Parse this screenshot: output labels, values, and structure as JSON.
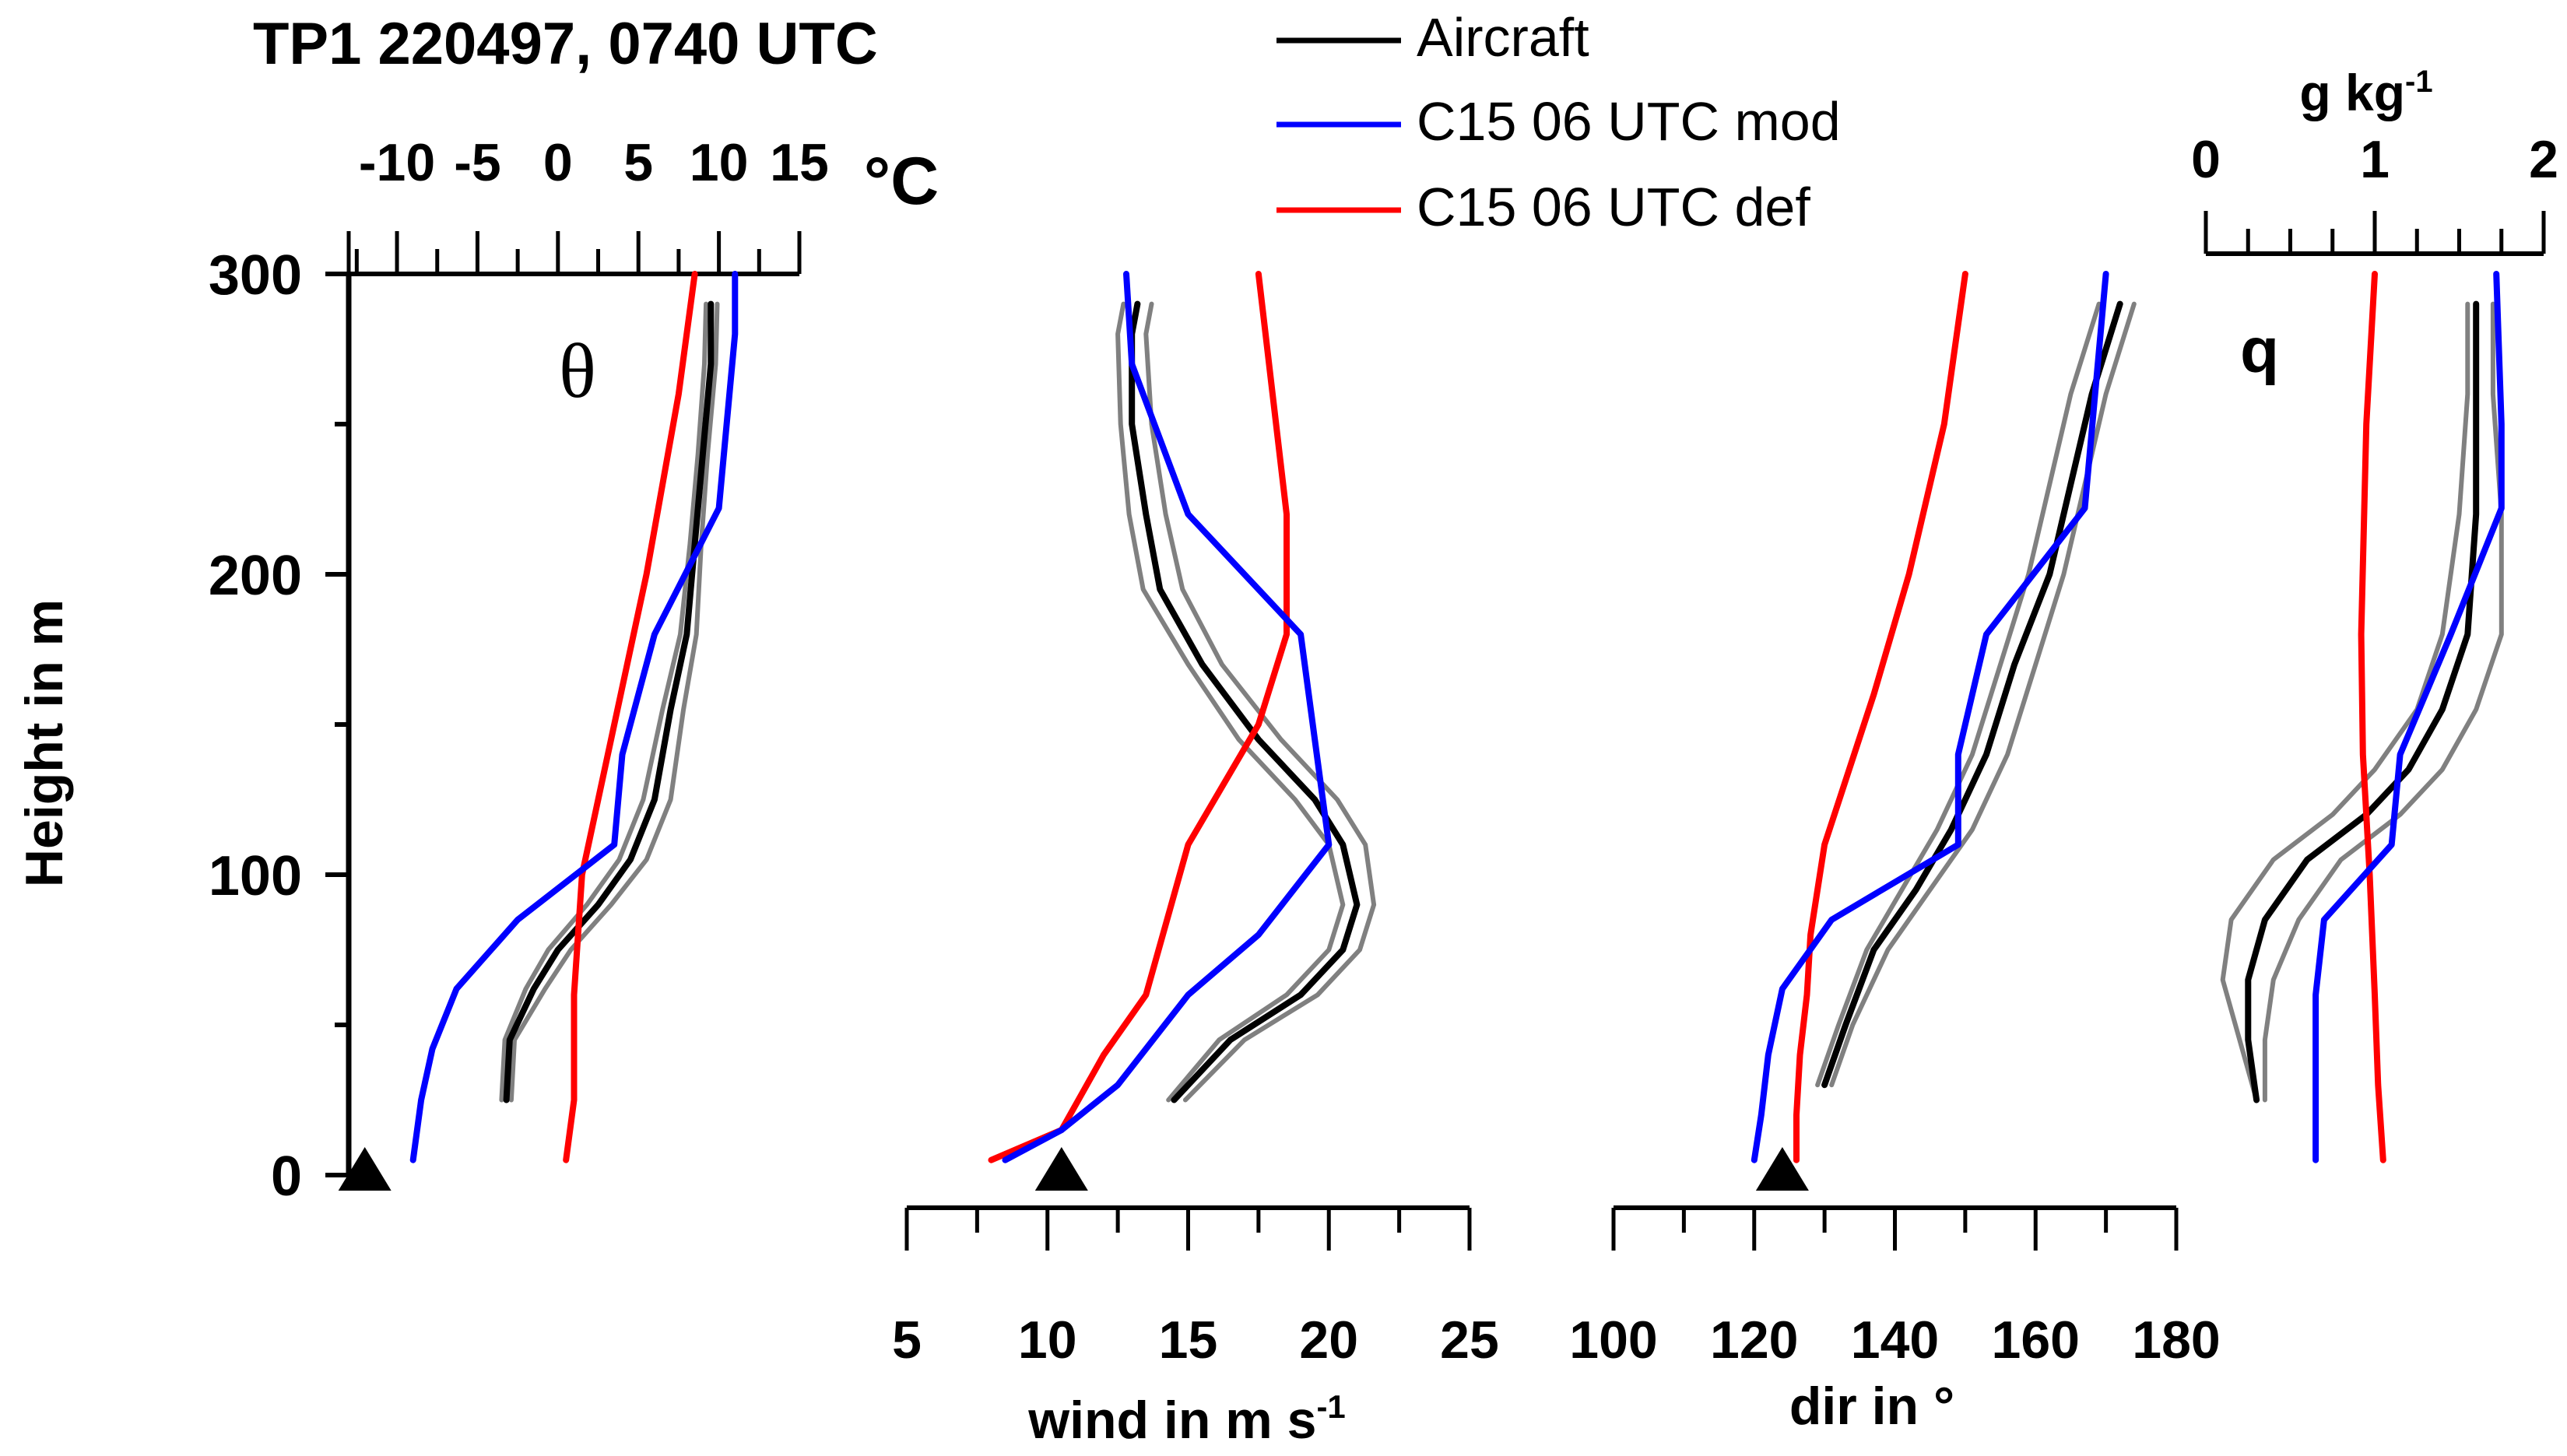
{
  "chart_data": {
    "type": "line",
    "title": "TP1 220497, 0740 UTC",
    "ylabel": "Height in m",
    "ylim": [
      0,
      300
    ],
    "yticks": [
      "0",
      "100",
      "200",
      "300"
    ],
    "legend": [
      "Aircraft",
      "C15 06 UTC mod",
      "C15 06 UTC def"
    ],
    "colors": {
      "aircraft": "#000000",
      "aircraft_band": "#808080",
      "mod": "#0000ff",
      "def": "#ff0000",
      "marker": "#000000"
    },
    "panels": [
      {
        "id": "theta",
        "label": "θ",
        "unit": "°C",
        "xlabel": "",
        "xlim": [
          -13,
          15
        ],
        "xticks": [
          "-10",
          "-5",
          "0",
          "5",
          "10",
          "15"
        ],
        "axis_position": "top",
        "surface_marker": -12,
        "series": {
          "aircraft": [
            [
              -3.2,
              25
            ],
            [
              -3,
              45
            ],
            [
              -1.5,
              62
            ],
            [
              0,
              75
            ],
            [
              2.5,
              90
            ],
            [
              4.5,
              105
            ],
            [
              6,
              125
            ],
            [
              7,
              155
            ],
            [
              8,
              180
            ],
            [
              8.5,
              210
            ],
            [
              9,
              240
            ],
            [
              9.5,
              270
            ],
            [
              9.5,
              290
            ]
          ],
          "aircraft_low": [
            [
              -3.5,
              25
            ],
            [
              -3.3,
              45
            ],
            [
              -2,
              62
            ],
            [
              -0.6,
              75
            ],
            [
              1.8,
              90
            ],
            [
              3.8,
              105
            ],
            [
              5.3,
              125
            ],
            [
              6.5,
              155
            ],
            [
              7.6,
              180
            ],
            [
              8.2,
              210
            ],
            [
              8.7,
              240
            ],
            [
              9.1,
              270
            ],
            [
              9.2,
              290
            ]
          ],
          "aircraft_high": [
            [
              -2.9,
              25
            ],
            [
              -2.7,
              45
            ],
            [
              -0.8,
              62
            ],
            [
              0.8,
              75
            ],
            [
              3.3,
              90
            ],
            [
              5.5,
              105
            ],
            [
              7,
              125
            ],
            [
              7.8,
              155
            ],
            [
              8.6,
              180
            ],
            [
              8.9,
              210
            ],
            [
              9.3,
              240
            ],
            [
              9.8,
              270
            ],
            [
              9.9,
              290
            ]
          ],
          "mod": [
            [
              -9,
              5
            ],
            [
              -8.5,
              25
            ],
            [
              -7.8,
              42
            ],
            [
              -6.3,
              62
            ],
            [
              -2.5,
              85
            ],
            [
              3.5,
              110
            ],
            [
              4,
              140
            ],
            [
              6,
              180
            ],
            [
              10,
              222
            ],
            [
              11,
              280
            ],
            [
              11,
              300
            ]
          ],
          "def": [
            [
              0.5,
              5
            ],
            [
              1,
              25
            ],
            [
              1,
              60
            ],
            [
              1.5,
              100
            ],
            [
              3.5,
              150
            ],
            [
              5.5,
              200
            ],
            [
              7.5,
              260
            ],
            [
              8.5,
              300
            ]
          ]
        }
      },
      {
        "id": "wind",
        "label": "",
        "unit": "",
        "xlabel": "wind in m s",
        "xlabel_sup": "-1",
        "xlim": [
          5,
          25
        ],
        "xticks": [
          "5",
          "10",
          "15",
          "20",
          "25"
        ],
        "axis_position": "bottom",
        "surface_marker": 10.5,
        "series": {
          "aircraft": [
            [
              14.5,
              25
            ],
            [
              16.5,
              45
            ],
            [
              19,
              60
            ],
            [
              20.5,
              75
            ],
            [
              21,
              90
            ],
            [
              20.5,
              110
            ],
            [
              19.5,
              125
            ],
            [
              17.5,
              145
            ],
            [
              15.5,
              170
            ],
            [
              14,
              195
            ],
            [
              13.5,
              220
            ],
            [
              13,
              250
            ],
            [
              13,
              280
            ],
            [
              13.2,
              290
            ]
          ],
          "aircraft_low": [
            [
              14.3,
              25
            ],
            [
              16.1,
              45
            ],
            [
              18.5,
              60
            ],
            [
              20,
              75
            ],
            [
              20.5,
              90
            ],
            [
              20,
              110
            ],
            [
              18.8,
              125
            ],
            [
              16.8,
              145
            ],
            [
              15,
              170
            ],
            [
              13.4,
              195
            ],
            [
              12.9,
              220
            ],
            [
              12.6,
              250
            ],
            [
              12.5,
              280
            ],
            [
              12.7,
              290
            ]
          ],
          "aircraft_high": [
            [
              14.9,
              25
            ],
            [
              17,
              45
            ],
            [
              19.6,
              60
            ],
            [
              21.1,
              75
            ],
            [
              21.6,
              90
            ],
            [
              21.3,
              110
            ],
            [
              20.3,
              125
            ],
            [
              18.3,
              145
            ],
            [
              16.2,
              170
            ],
            [
              14.8,
              195
            ],
            [
              14.2,
              220
            ],
            [
              13.7,
              250
            ],
            [
              13.5,
              280
            ],
            [
              13.7,
              290
            ]
          ],
          "mod": [
            [
              8.5,
              5
            ],
            [
              10.5,
              15
            ],
            [
              12.5,
              30
            ],
            [
              15,
              60
            ],
            [
              17.5,
              80
            ],
            [
              20,
              110
            ],
            [
              19,
              180
            ],
            [
              15,
              220
            ],
            [
              13,
              270
            ],
            [
              12.8,
              300
            ]
          ],
          "def": [
            [
              8,
              5
            ],
            [
              10.5,
              15
            ],
            [
              12,
              40
            ],
            [
              13.5,
              60
            ],
            [
              15,
              110
            ],
            [
              17.5,
              150
            ],
            [
              18.5,
              180
            ],
            [
              18.5,
              220
            ],
            [
              17.5,
              300
            ]
          ]
        }
      },
      {
        "id": "dir",
        "label": "",
        "unit": "",
        "xlabel": "dir in °",
        "xlim": [
          100,
          180
        ],
        "xticks": [
          "100",
          "120",
          "140",
          "160",
          "180"
        ],
        "axis_position": "bottom",
        "surface_marker": 124,
        "series": {
          "aircraft": [
            [
              130,
              30
            ],
            [
              133,
              50
            ],
            [
              137,
              75
            ],
            [
              143,
              95
            ],
            [
              148,
              115
            ],
            [
              153,
              140
            ],
            [
              157,
              170
            ],
            [
              162,
              200
            ],
            [
              165,
              230
            ],
            [
              168,
              260
            ],
            [
              172,
              290
            ]
          ],
          "aircraft_low": [
            [
              131,
              30
            ],
            [
              134,
              50
            ],
            [
              139,
              75
            ],
            [
              145,
              95
            ],
            [
              151,
              115
            ],
            [
              156,
              140
            ],
            [
              160,
              170
            ],
            [
              164,
              200
            ],
            [
              167,
              230
            ],
            [
              170,
              260
            ],
            [
              174,
              290
            ]
          ],
          "aircraft_high": [
            [
              129,
              30
            ],
            [
              132,
              50
            ],
            [
              136,
              75
            ],
            [
              141,
              95
            ],
            [
              146,
              115
            ],
            [
              151,
              140
            ],
            [
              155,
              170
            ],
            [
              159,
              200
            ],
            [
              162,
              230
            ],
            [
              165,
              260
            ],
            [
              169,
              290
            ]
          ],
          "mod": [
            [
              120,
              5
            ],
            [
              121,
              20
            ],
            [
              122,
              40
            ],
            [
              124,
              62
            ],
            [
              131,
              85
            ],
            [
              149,
              110
            ],
            [
              149,
              140
            ],
            [
              153,
              180
            ],
            [
              167,
              222
            ],
            [
              170,
              300
            ]
          ],
          "def": [
            [
              126,
              5
            ],
            [
              126,
              20
            ],
            [
              126.5,
              40
            ],
            [
              127.5,
              60
            ],
            [
              128,
              80
            ],
            [
              130,
              110
            ],
            [
              137,
              160
            ],
            [
              142,
              200
            ],
            [
              147,
              250
            ],
            [
              150,
              300
            ]
          ]
        }
      },
      {
        "id": "q",
        "label": "q",
        "unit": "g kg",
        "unit_sup": "-1",
        "xlabel": "",
        "xlim": [
          0,
          2
        ],
        "xticks": [
          "0",
          "1",
          "2"
        ],
        "axis_position": "top",
        "surface_marker": null,
        "series": {
          "aircraft": [
            [
              0.3,
              25
            ],
            [
              0.25,
              45
            ],
            [
              0.25,
              65
            ],
            [
              0.35,
              85
            ],
            [
              0.6,
              105
            ],
            [
              0.95,
              120
            ],
            [
              1.2,
              135
            ],
            [
              1.4,
              155
            ],
            [
              1.55,
              180
            ],
            [
              1.6,
              220
            ],
            [
              1.6,
              260
            ],
            [
              1.6,
              290
            ]
          ],
          "aircraft_low": [
            [
              0.3,
              25
            ],
            [
              0.2,
              45
            ],
            [
              0.1,
              65
            ],
            [
              0.15,
              85
            ],
            [
              0.4,
              105
            ],
            [
              0.75,
              120
            ],
            [
              1,
              135
            ],
            [
              1.25,
              155
            ],
            [
              1.4,
              180
            ],
            [
              1.5,
              220
            ],
            [
              1.55,
              260
            ],
            [
              1.55,
              290
            ]
          ],
          "aircraft_high": [
            [
              0.35,
              25
            ],
            [
              0.35,
              45
            ],
            [
              0.4,
              65
            ],
            [
              0.55,
              85
            ],
            [
              0.8,
              105
            ],
            [
              1.15,
              120
            ],
            [
              1.4,
              135
            ],
            [
              1.6,
              155
            ],
            [
              1.75,
              180
            ],
            [
              1.75,
              220
            ],
            [
              1.7,
              260
            ],
            [
              1.7,
              290
            ]
          ],
          "mod": [
            [
              0.65,
              5
            ],
            [
              0.65,
              30
            ],
            [
              0.65,
              60
            ],
            [
              0.7,
              85
            ],
            [
              1.1,
              110
            ],
            [
              1.15,
              140
            ],
            [
              1.45,
              180
            ],
            [
              1.75,
              222
            ],
            [
              1.75,
              250
            ],
            [
              1.72,
              300
            ]
          ],
          "def": [
            [
              1.05,
              5
            ],
            [
              1.02,
              30
            ],
            [
              1,
              60
            ],
            [
              0.97,
              100
            ],
            [
              0.93,
              140
            ],
            [
              0.92,
              180
            ],
            [
              0.95,
              250
            ],
            [
              1,
              300
            ]
          ]
        }
      }
    ]
  }
}
